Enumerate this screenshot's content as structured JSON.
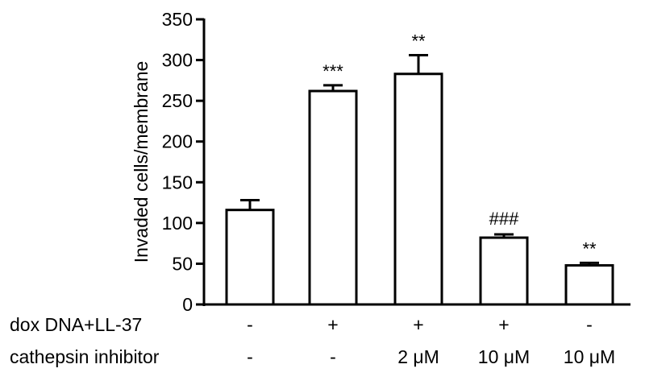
{
  "chart_data": {
    "type": "bar",
    "ylabel": "Invaded cells/membrane",
    "ylim": [
      0,
      350
    ],
    "yticks": [
      0,
      50,
      100,
      150,
      200,
      250,
      300,
      350
    ],
    "grid": false,
    "error_bars": "upper",
    "bar_fill": "#ffffff",
    "bar_stroke": "#000000",
    "values": [
      116,
      262,
      283,
      82,
      48
    ],
    "errors": [
      12,
      7,
      23,
      4,
      3
    ],
    "significance": [
      "",
      "***",
      "**",
      "###",
      "**"
    ],
    "conditions": [
      {
        "name": "dox DNA+LL-37",
        "values": [
          "-",
          "+",
          "+",
          "+",
          "-"
        ]
      },
      {
        "name": "cathepsin inhibitor",
        "values": [
          "-",
          "-",
          "2 μM",
          "10 μM",
          "10 μM"
        ]
      }
    ]
  }
}
